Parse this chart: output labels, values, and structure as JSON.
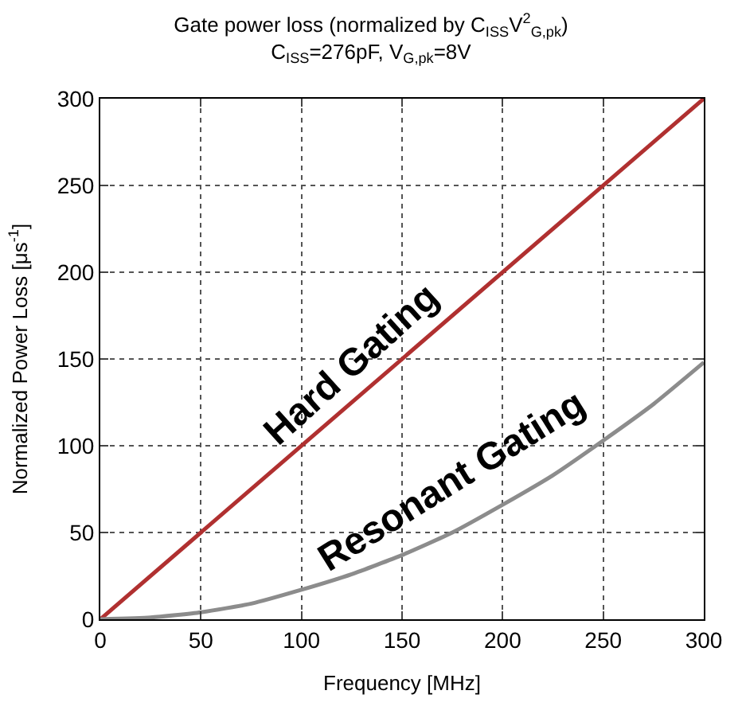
{
  "chart_data": {
    "type": "line",
    "title": "Gate power loss (normalized by C$_{ISS}$V$^{2}$$_{G,pk}$)",
    "subtitle": "C$_{ISS}$=276pF, V$_{G,pk}$=8V",
    "xlabel": "Frequency [MHz]",
    "ylabel": "Normalized Power Loss [μs$^{-1}$]",
    "series": [
      {
        "name": "Hard Gating",
        "color": "#b03030",
        "x": [
          0,
          300
        ],
        "values": [
          0,
          300
        ]
      },
      {
        "name": "Resonant Gating",
        "color": "#8c8c8c",
        "x": [
          0,
          25,
          50,
          75,
          100,
          125,
          150,
          175,
          200,
          225,
          250,
          275,
          300
        ],
        "values": [
          0,
          1,
          4,
          9,
          17,
          26,
          37,
          50,
          66,
          83,
          103,
          124,
          148
        ]
      }
    ],
    "xlim": [
      0,
      300
    ],
    "xticks": [
      0,
      50,
      100,
      150,
      200,
      250,
      300
    ],
    "ylim": [
      0,
      300
    ],
    "yticks": [
      0,
      50,
      100,
      150,
      200,
      250,
      300
    ],
    "grid": true,
    "legend": false,
    "marker": "none",
    "line_style": "solid"
  }
}
